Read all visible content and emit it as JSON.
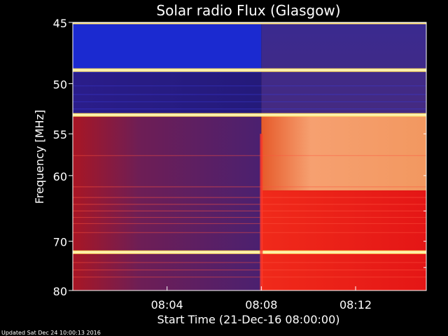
{
  "footer": {
    "updated_text": "Updated Sat Dec 24 10:00:13 2016"
  },
  "colors": {
    "background": "#000000",
    "text": "#ffffff",
    "low": "#2d1a7a",
    "mid": "#cc1010",
    "high": "#ffd08a",
    "line": "#ffe070"
  },
  "chart_data": {
    "type": "heatmap",
    "title": "Solar radio Flux (Glasgow)",
    "xlabel": "Start Time (21-Dec-16 08:00:00)",
    "ylabel": "Frequency [MHz]",
    "x_ticks": [
      {
        "value": 4,
        "label": "08:04"
      },
      {
        "value": 8,
        "label": "08:08"
      },
      {
        "value": 12,
        "label": "08:12"
      }
    ],
    "y_ticks": [
      {
        "value": 45,
        "label": "45"
      },
      {
        "value": 50,
        "label": "50"
      },
      {
        "value": 55,
        "label": "55"
      },
      {
        "value": 60,
        "label": "60"
      },
      {
        "value": 70,
        "label": "70"
      },
      {
        "value": 80,
        "label": "80"
      }
    ],
    "xlim": [
      0,
      15
    ],
    "ylim": [
      45,
      80
    ],
    "y_scale": "reciprocal",
    "event_start_minutes": 8,
    "bright_bands_mhz": [
      45.0,
      48.8,
      53.0,
      72.0
    ],
    "intensity_regions": [
      {
        "t_start": 0,
        "t_end": 8,
        "f_start": 45,
        "f_end": 49,
        "level": "very-low"
      },
      {
        "t_start": 0,
        "t_end": 8,
        "f_start": 49,
        "f_end": 53,
        "level": "low"
      },
      {
        "t_start": 0,
        "t_end": 8,
        "f_start": 53,
        "f_end": 80,
        "level": "medium"
      },
      {
        "t_start": 8,
        "t_end": 15,
        "f_start": 45,
        "f_end": 53,
        "level": "low"
      },
      {
        "t_start": 8,
        "t_end": 15,
        "f_start": 53,
        "f_end": 62,
        "level": "high"
      },
      {
        "t_start": 8,
        "t_end": 15,
        "f_start": 62,
        "f_end": 80,
        "level": "elevated"
      }
    ]
  }
}
